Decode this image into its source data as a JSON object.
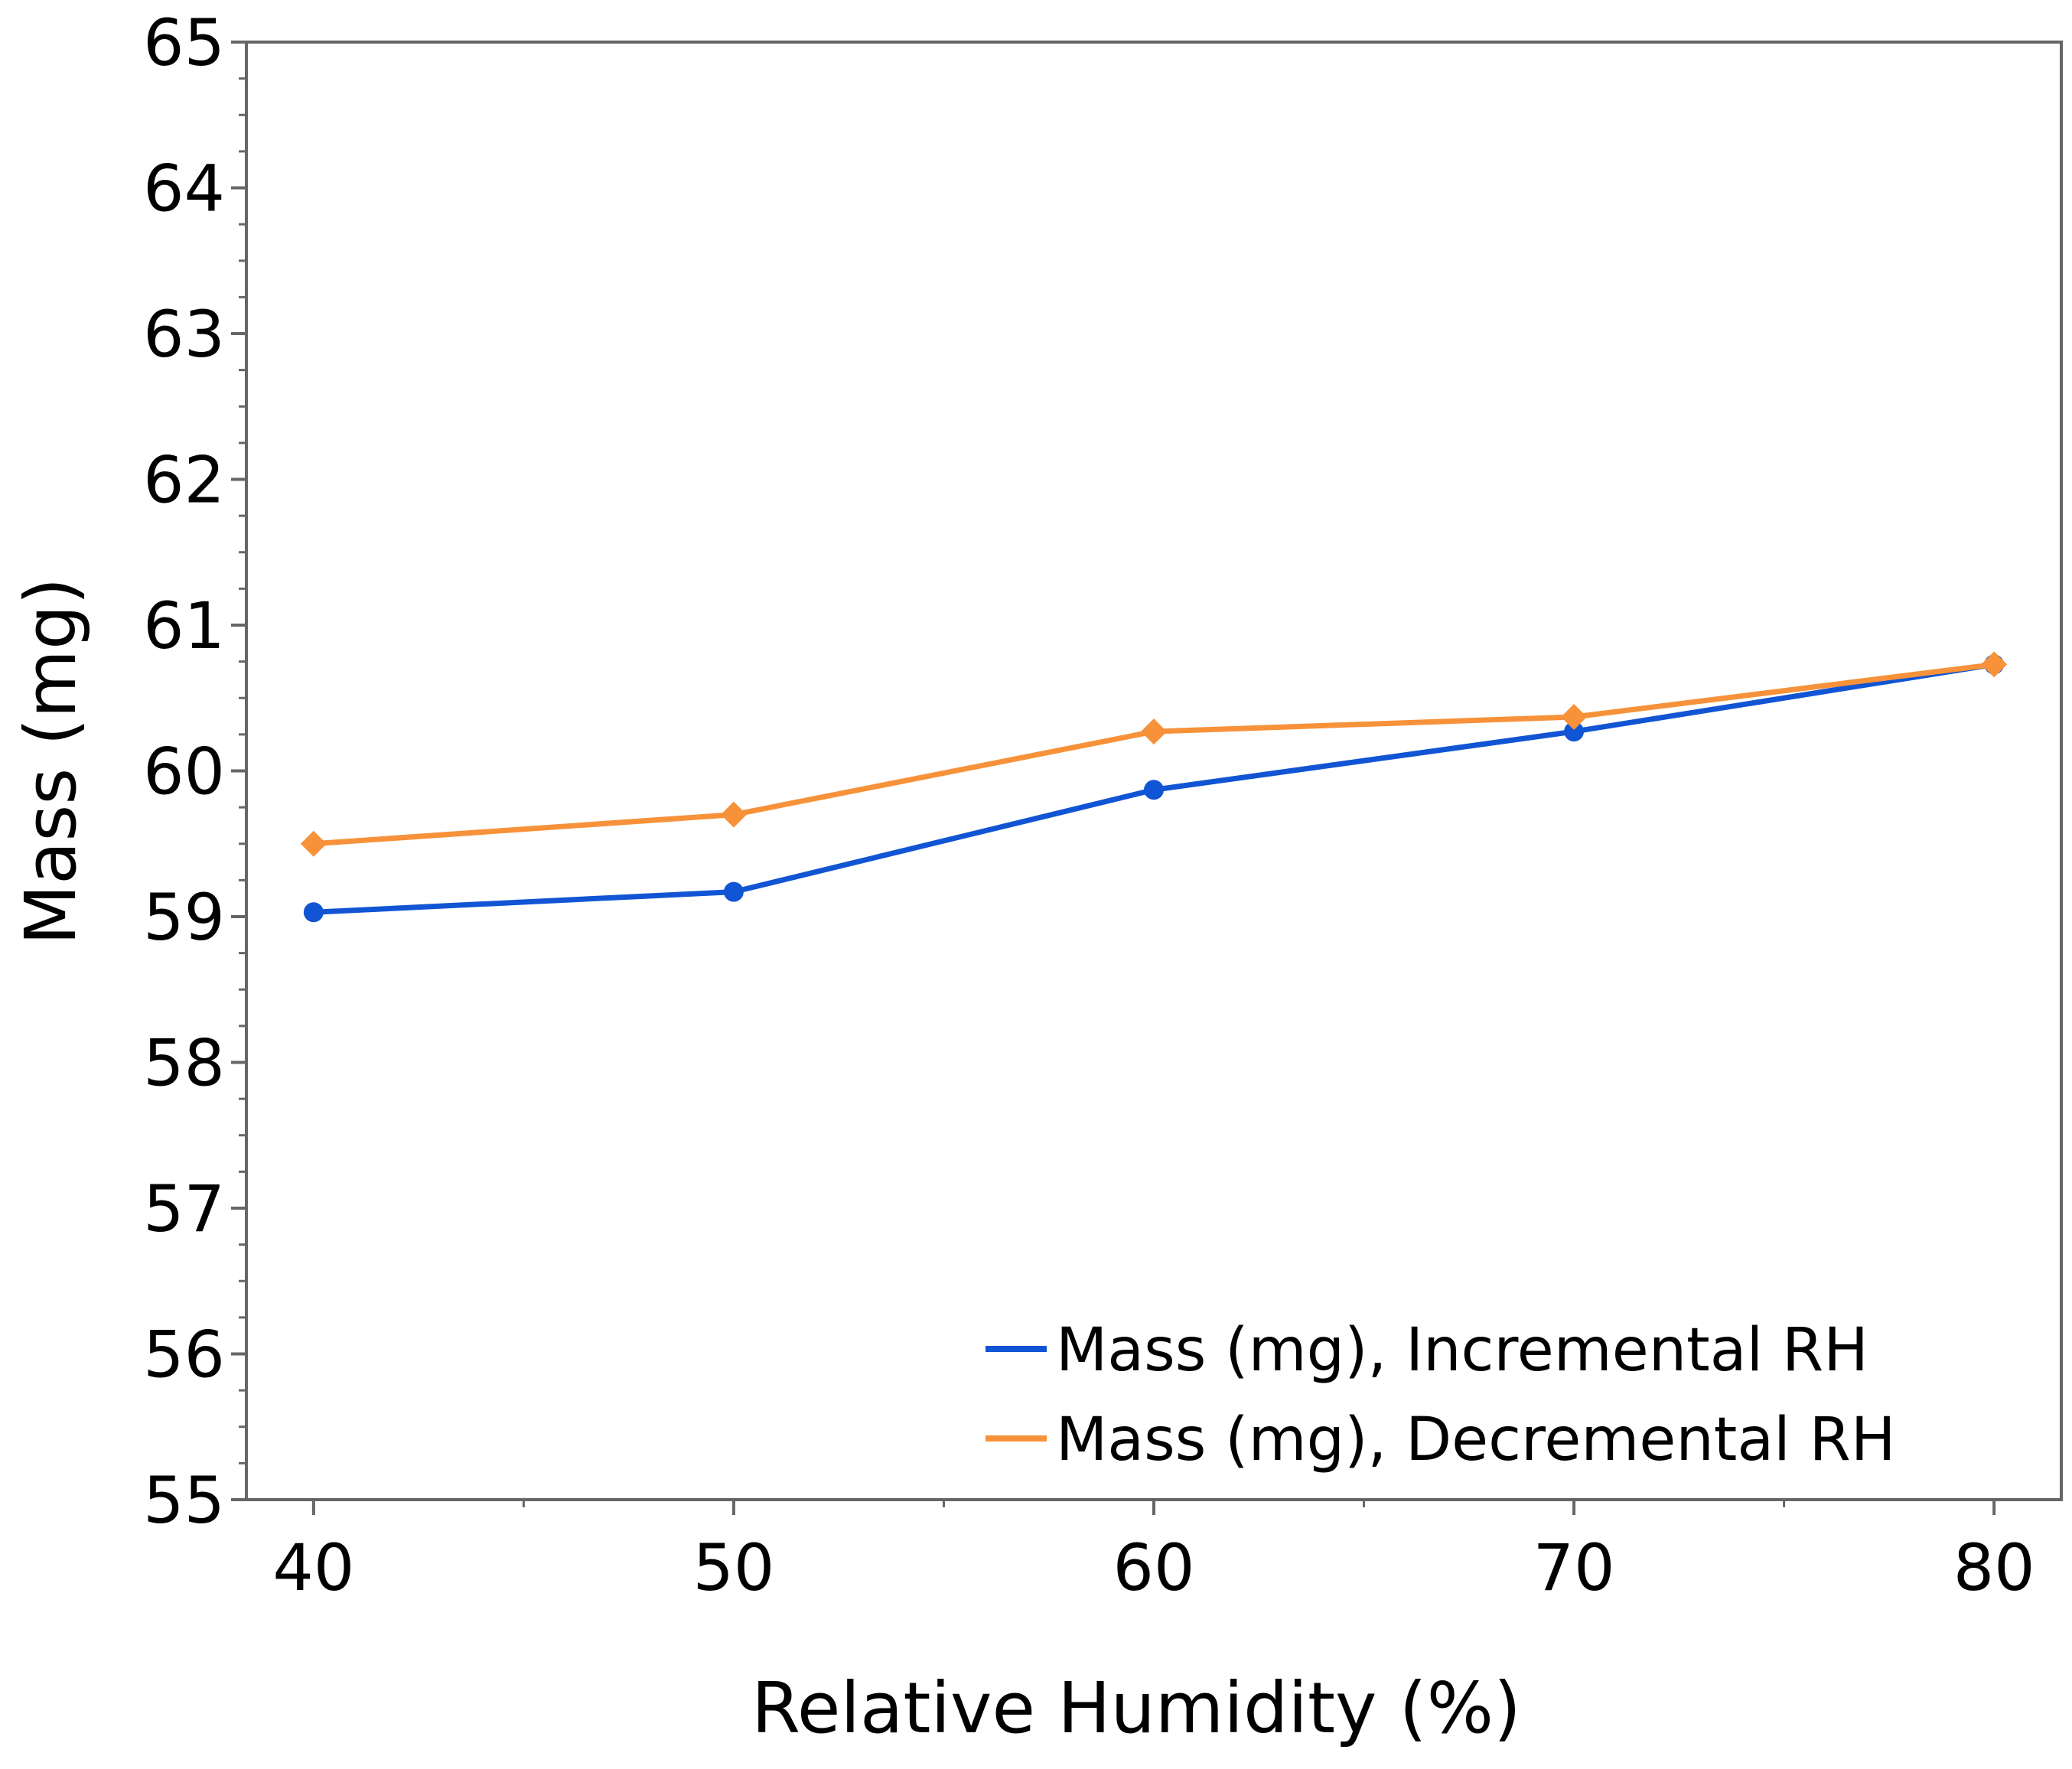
{
  "chart_data": {
    "type": "line",
    "title": "",
    "xlabel": "Relative Humidity (%)",
    "ylabel": "Mass (mg)",
    "x": [
      40,
      50,
      60,
      70,
      80
    ],
    "xlim": [
      38.4,
      81.6
    ],
    "ylim": [
      55,
      65
    ],
    "x_ticks": [
      40,
      50,
      60,
      70,
      80
    ],
    "x_tick_labels": [
      "40",
      "50",
      "60",
      "70",
      "80"
    ],
    "x_minor_ticks": [
      45,
      55,
      65,
      75
    ],
    "y_ticks": [
      55,
      56,
      57,
      58,
      59,
      60,
      61,
      62,
      63,
      64,
      65
    ],
    "y_tick_labels": [
      "55",
      "56",
      "57",
      "58",
      "59",
      "60",
      "61",
      "62",
      "63",
      "64",
      "65"
    ],
    "y_minor_step": 0.25,
    "grid": false,
    "legend_position": "bottom-right",
    "series": [
      {
        "name": "Mass (mg), Incremental RH",
        "color": "#1155d4",
        "marker": "circle",
        "values": [
          59.03,
          59.17,
          59.87,
          60.27,
          60.73
        ]
      },
      {
        "name": "Mass (mg), Decremental RH",
        "color": "#f7923a",
        "marker": "diamond",
        "values": [
          59.5,
          59.7,
          60.27,
          60.37,
          60.73
        ]
      }
    ],
    "axis_color": "#666666"
  }
}
